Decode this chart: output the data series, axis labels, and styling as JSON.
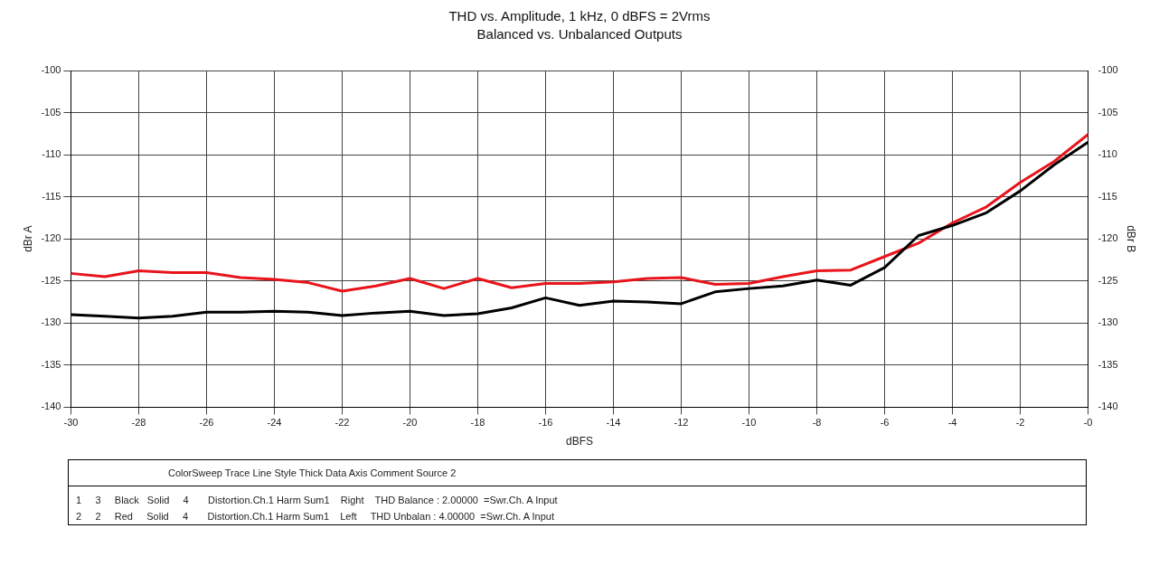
{
  "chart_data": {
    "type": "line",
    "title": "THD vs. Amplitude, 1 kHz, 0 dBFS = 2Vrms",
    "subtitle": "Balanced vs. Unbalanced Outputs",
    "xlabel": "dBFS",
    "ylabel": "dBr A",
    "y2label": "dBr B",
    "x": [
      -30,
      -29,
      -28,
      -27,
      -26,
      -25,
      -24,
      -23,
      -22,
      -21,
      -20,
      -19,
      -18,
      -17,
      -16,
      -15,
      -14,
      -13,
      -12,
      -11,
      -10,
      -9,
      -8,
      -7,
      -6,
      -5,
      -4,
      -3,
      -2,
      -1,
      0
    ],
    "series": [
      {
        "color": "#000000",
        "values": [
          -129.0,
          -129.2,
          -129.4,
          -129.2,
          -128.7,
          -128.7,
          -128.6,
          -128.7,
          -129.1,
          -128.8,
          -128.6,
          -129.1,
          -128.9,
          -128.2,
          -127.0,
          -127.9,
          -127.4,
          -127.5,
          -127.7,
          -126.3,
          -125.9,
          -125.6,
          -124.9,
          -125.5,
          -123.4,
          -119.6,
          -118.4,
          -116.9,
          -114.3,
          -111.2,
          -108.5
        ]
      },
      {
        "color": "#e8141b",
        "values": [
          -124.1,
          -124.5,
          -123.8,
          -124.0,
          -124.0,
          -124.6,
          -124.8,
          -125.2,
          -126.2,
          -125.6,
          -124.7,
          -125.9,
          -124.7,
          -125.8,
          -125.3,
          -125.3,
          -125.1,
          -124.7,
          -124.6,
          -125.4,
          -125.3,
          -124.5,
          -123.8,
          -123.7,
          -122.1,
          -120.5,
          -118.1,
          -116.2,
          -113.3,
          -110.8,
          -107.6
        ]
      }
    ],
    "xlim": [
      -30,
      0
    ],
    "xticks": [
      -30,
      -28,
      -26,
      -24,
      -22,
      -20,
      -18,
      -16,
      -14,
      -12,
      -10,
      -8,
      -6,
      -4,
      -2,
      {
        "value": 0,
        "label": "-0"
      }
    ],
    "ylim": [
      -140,
      -100
    ],
    "yticks": [
      -140,
      -135,
      -130,
      -125,
      -120,
      -115,
      -110,
      -105,
      -100
    ],
    "y2lim": [
      -140,
      -100
    ],
    "y2ticks": [
      -140,
      -135,
      -130,
      -125,
      -120,
      -115,
      -110,
      -105,
      -100
    ],
    "grid": true,
    "legend": false,
    "marker": "none",
    "line_style": "solid",
    "annotations": [
      "ColorSweep Trace Line Style Thick Data Axis Comment Source 2",
      "1     3     Black   Solid     4       Distortion.Ch.1 Harm Sum1    Right    THD Balance : 2.00000  =Swr.Ch. A Input",
      "2     2     Red     Solid     4       Distortion.Ch.1 Harm Sum1    Left     THD Unbalan : 4.00000  =Swr.Ch. A Input"
    ]
  }
}
